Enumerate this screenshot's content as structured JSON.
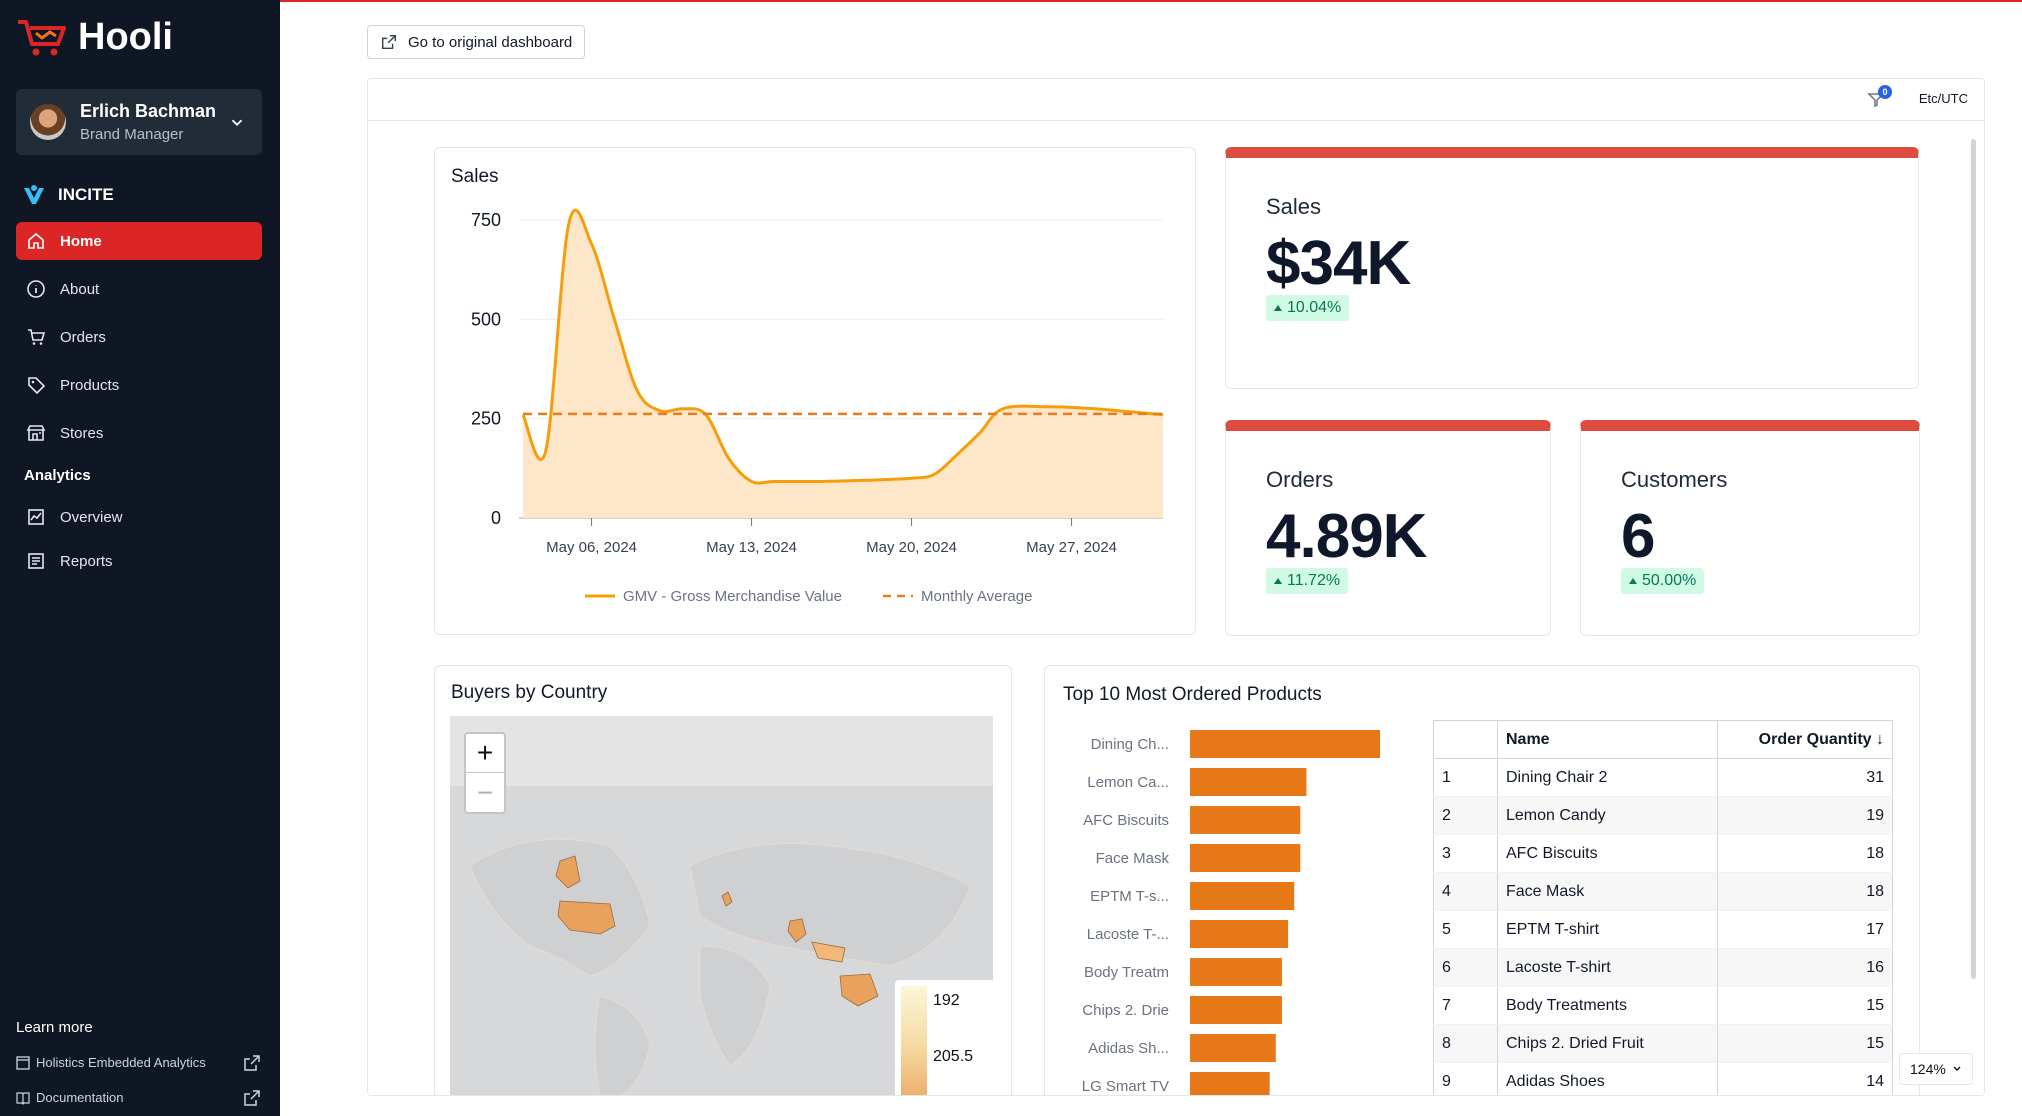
{
  "brand": {
    "name": "Hooli",
    "accent": "#dc2626",
    "sidebar_bg": "#0f1724"
  },
  "user": {
    "name": "Erlich Bachman",
    "role": "Brand Manager"
  },
  "incite_label": "INCITE",
  "nav": {
    "home": "Home",
    "about": "About",
    "orders": "Orders",
    "products": "Products",
    "stores": "Stores",
    "analytics_heading": "Analytics",
    "overview": "Overview",
    "reports": "Reports"
  },
  "learn_more": {
    "title": "Learn more",
    "links": [
      "Holistics Embedded Analytics",
      "Documentation"
    ]
  },
  "toolbar": {
    "original_dashboard": "Go to original dashboard",
    "timezone": "Etc/UTC",
    "filter_count": "0",
    "zoom": "124%"
  },
  "sales_chart": {
    "title": "Sales",
    "legend": [
      "GMV - Gross Merchandise Value",
      "Monthly Average"
    ]
  },
  "chart_data": {
    "type": "area",
    "title": "Sales",
    "x_ticks": [
      "May 06, 2024",
      "May 13, 2024",
      "May 20, 2024",
      "May 27, 2024"
    ],
    "y_ticks": [
      0,
      250,
      500,
      750
    ],
    "ylim": [
      0,
      750
    ],
    "xlim": [
      "2024-05-03",
      "2024-05-31"
    ],
    "series": [
      {
        "name": "GMV - Gross Merchandise Value",
        "type": "area",
        "color": "#f59e0b",
        "x": [
          "2024-05-03",
          "2024-05-04",
          "2024-05-05",
          "2024-05-06",
          "2024-05-07",
          "2024-05-08",
          "2024-05-09",
          "2024-05-10",
          "2024-05-11",
          "2024-05-12",
          "2024-05-13",
          "2024-05-14",
          "2024-05-16",
          "2024-05-18",
          "2024-05-20",
          "2024-05-21",
          "2024-05-22",
          "2024-05-23",
          "2024-05-24",
          "2024-05-26",
          "2024-05-28",
          "2024-05-31"
        ],
        "values": [
          260,
          170,
          740,
          690,
          500,
          320,
          270,
          275,
          260,
          150,
          92,
          92,
          92,
          95,
          100,
          110,
          160,
          215,
          275,
          280,
          275,
          260
        ]
      },
      {
        "name": "Monthly Average",
        "type": "line",
        "dashed": true,
        "color": "#ea7b1c",
        "x": [
          "2024-05-03",
          "2024-05-31"
        ],
        "values": [
          262,
          262
        ]
      }
    ]
  },
  "kpis": {
    "sales": {
      "label": "Sales",
      "value": "$34K",
      "change": "10.04%"
    },
    "orders": {
      "label": "Orders",
      "value": "4.89K",
      "change": "11.72%"
    },
    "customers": {
      "label": "Customers",
      "value": "6",
      "change": "50.00%"
    }
  },
  "map": {
    "title": "Buyers by Country",
    "legend_min": "192",
    "legend_mid": "205.5"
  },
  "top_products": {
    "title": "Top 10 Most Ordered Products",
    "bar_labels": [
      "Dining Ch...",
      "Lemon Ca...",
      "AFC Biscuits",
      "Face Mask",
      "EPTM T-s...",
      "Lacoste T-...",
      "Body Treatm",
      "Chips 2. Drie",
      "Adidas Sh...",
      "LG Smart TV"
    ],
    "bar_values": [
      31,
      19,
      18,
      18,
      17,
      16,
      15,
      15,
      14,
      13
    ],
    "bar_color": "#e67817",
    "table_headers": [
      "",
      "Name",
      "Order Quantity ↓"
    ],
    "rows": [
      {
        "rank": "1",
        "name": "Dining Chair 2",
        "qty": "31"
      },
      {
        "rank": "2",
        "name": "Lemon Candy",
        "qty": "19"
      },
      {
        "rank": "3",
        "name": "AFC Biscuits",
        "qty": "18"
      },
      {
        "rank": "4",
        "name": "Face Mask",
        "qty": "18"
      },
      {
        "rank": "5",
        "name": "EPTM T-shirt",
        "qty": "17"
      },
      {
        "rank": "6",
        "name": "Lacoste T-shirt",
        "qty": "16"
      },
      {
        "rank": "7",
        "name": "Body Treatments",
        "qty": "15"
      },
      {
        "rank": "8",
        "name": "Chips 2. Dried Fruit",
        "qty": "15"
      },
      {
        "rank": "9",
        "name": "Adidas Shoes",
        "qty": "14"
      }
    ]
  }
}
